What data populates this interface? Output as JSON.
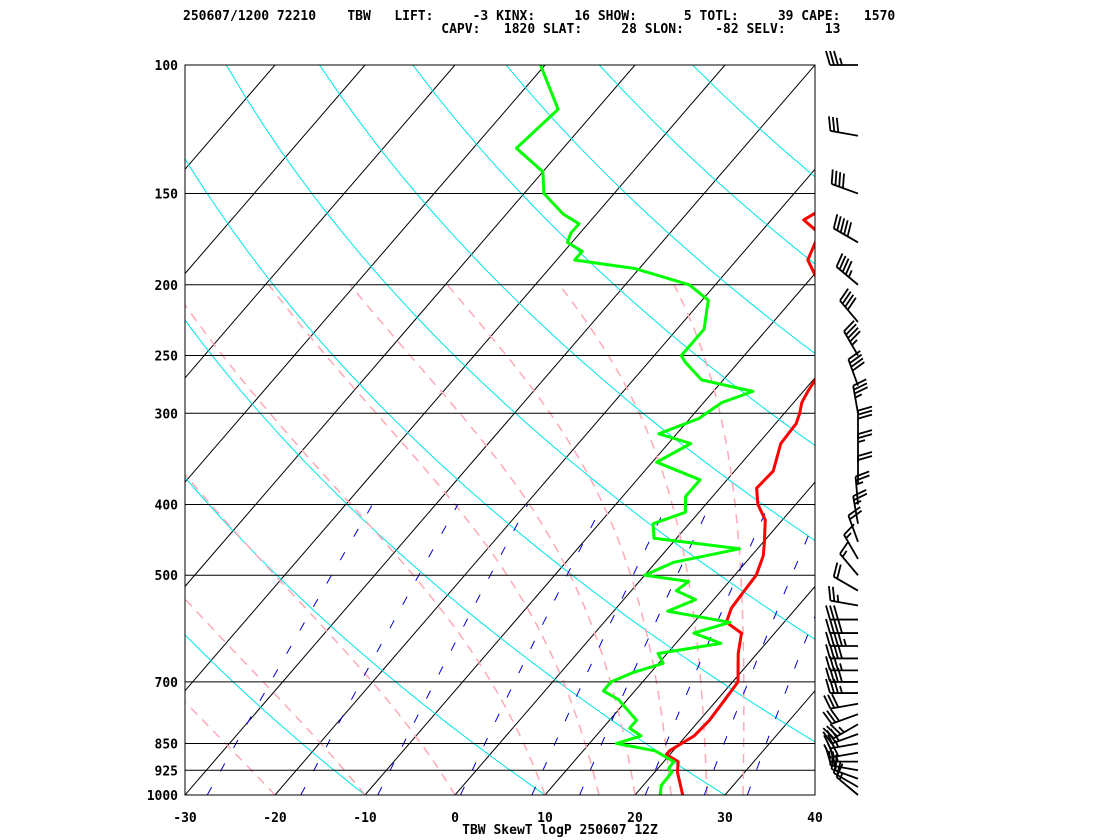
{
  "header": {
    "line1": "250607/1200 72210    TBW   LIFT:     -3 KINX:     16 SHOW:      5 TOTL:     39 CAPE:   1570",
    "line2": "                                 CAPV:   1820 SLAT:     28 SLON:    -82 SELV:     13"
  },
  "chart_data": {
    "type": "line",
    "title": "TBW SkewT logP 250607 12Z",
    "xlabel": "",
    "ylabel": "",
    "x_ticks": [
      -30,
      -20,
      -10,
      0,
      10,
      20,
      30,
      40
    ],
    "x_tick_labels": [
      "-30",
      "-20",
      "-10",
      "0",
      "10",
      "20",
      "30",
      "40"
    ],
    "p_levels": [
      100,
      150,
      200,
      250,
      300,
      400,
      500,
      700,
      850,
      925,
      1000
    ],
    "p_level_labels": [
      "100",
      "150",
      "200",
      "250",
      "300",
      "400",
      "500",
      "700",
      "850",
      "925",
      "1000"
    ],
    "xlim": [
      -30,
      40
    ],
    "ylim": [
      1000,
      100
    ],
    "scale": "log-pressure skew-T",
    "series": [
      {
        "color": "#ff0000",
        "x": [
          25.3,
          22.5,
          21.6,
          19.6,
          19.6,
          20.9,
          21.1,
          20.9,
          20.6,
          17.9,
          16.3,
          13.6,
          12.8,
          12.6,
          12.4,
          11.3,
          10.1,
          8.1,
          5.8,
          4.1,
          4.3,
          2.5,
          2.3,
          1.7,
          0.9,
          0.5,
          -0.4,
          -4.6,
          -8.4,
          -12.1,
          -13.4,
          -16.4,
          -14.9,
          -16.6,
          -19.1,
          -21.2,
          -22.4,
          -29.0
        ],
        "y": [
          1000,
          930,
          900,
          880,
          870,
          830,
          790,
          750,
          700,
          640,
          600,
          580,
          555,
          530,
          500,
          470,
          450,
          420,
          400,
          380,
          360,
          330,
          310,
          300,
          290,
          280,
          250,
          220,
          200,
          185,
          170,
          163,
          155,
          150,
          140,
          120,
          110,
          100
        ]
      },
      {
        "color": "#00ff00",
        "x": [
          22.8,
          22.0,
          21.9,
          21.2,
          21.1,
          18.0,
          13.0,
          15.0,
          13.0,
          13.0,
          9.0,
          6.5,
          6.5,
          8.0,
          10.5,
          9.0,
          15.0,
          11.0,
          14.0,
          6.0,
          8.0,
          5.0,
          5.5,
          0.0,
          2.0,
          8.0,
          -2.5,
          -4.0,
          -1.5,
          -3.0,
          -3.0,
          -9.5,
          -7.5,
          -12.0,
          -9.0,
          -8.0,
          -5.6,
          -12.4,
          -16.0,
          -17.0,
          -17.0,
          -17.0,
          -19.3,
          -22.9,
          -30.5,
          -38.0,
          -38.0,
          -40.5,
          -41.0,
          -41.0,
          -43.7,
          -47.8,
          -50.0,
          -55.2,
          -54.3,
          -60.5
        ],
        "y": [
          1000,
          970,
          930,
          920,
          900,
          870,
          850,
          830,
          810,
          790,
          740,
          720,
          700,
          680,
          660,
          640,
          620,
          600,
          580,
          560,
          540,
          525,
          510,
          500,
          480,
          460,
          445,
          425,
          410,
          390,
          370,
          350,
          330,
          320,
          305,
          290,
          280,
          270,
          255,
          250,
          240,
          230,
          210,
          200,
          190,
          185,
          180,
          175,
          170,
          165,
          160,
          150,
          140,
          130,
          115,
          100
        ]
      }
    ],
    "wind_barbs": {
      "p": [
        1000,
        975,
        950,
        925,
        900,
        875,
        850,
        825,
        800,
        775,
        750,
        725,
        700,
        675,
        650,
        625,
        600,
        575,
        550,
        525,
        500,
        475,
        450,
        425,
        400,
        375,
        350,
        325,
        300,
        275,
        250,
        225,
        200,
        175,
        150,
        125,
        100
      ],
      "dir": [
        310,
        300,
        290,
        280,
        270,
        260,
        260,
        250,
        240,
        250,
        260,
        270,
        270,
        270,
        270,
        270,
        270,
        270,
        280,
        300,
        320,
        330,
        340,
        350,
        355,
        0,
        0,
        0,
        350,
        340,
        330,
        320,
        310,
        300,
        290,
        280,
        270
      ],
      "speed": [
        15,
        20,
        25,
        20,
        25,
        30,
        25,
        30,
        35,
        30,
        30,
        35,
        40,
        35,
        40,
        45,
        40,
        30,
        25,
        20,
        15,
        15,
        20,
        25,
        25,
        20,
        25,
        30,
        35,
        40,
        45,
        40,
        45,
        50,
        40,
        30,
        35
      ]
    }
  }
}
